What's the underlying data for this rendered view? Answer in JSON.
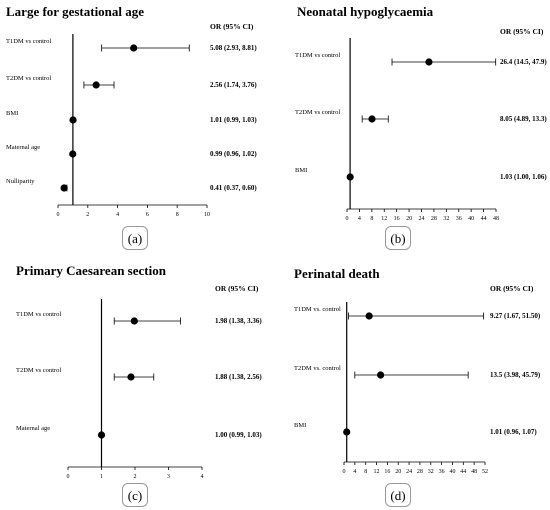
{
  "chart_data": [
    {
      "type": "forest",
      "title": "Large for gestational age",
      "or_header": "OR (95% CI)",
      "caption": "(a)",
      "xlim": [
        0,
        10
      ],
      "ticks": [
        0,
        2,
        4,
        6,
        8,
        10
      ],
      "reference_line": 1,
      "rows": [
        {
          "label": "T1DM vs control",
          "or": 5.08,
          "lo": 2.93,
          "hi": 8.81,
          "text": "5.08 (2.93, 8.81)"
        },
        {
          "label": "T2DM vs control",
          "or": 2.56,
          "lo": 1.74,
          "hi": 3.76,
          "text": "2.56 (1.74, 3.76)"
        },
        {
          "label": "BMI",
          "or": 1.01,
          "lo": 0.99,
          "hi": 1.03,
          "text": "1.01 (0.99, 1.03)"
        },
        {
          "label": "Maternal age",
          "or": 0.99,
          "lo": 0.96,
          "hi": 1.02,
          "text": "0.99 (0.96, 1.02)"
        },
        {
          "label": "Nulliparity",
          "or": 0.41,
          "lo": 0.37,
          "hi": 0.6,
          "text": "0.41 (0.37, 0.60)"
        }
      ]
    },
    {
      "type": "forest",
      "title": "Neonatal hypoglycaemia",
      "or_header": "OR (95% CI)",
      "caption": "(b)",
      "xlim": [
        0,
        48
      ],
      "ticks": [
        0,
        4,
        8,
        12,
        16,
        20,
        24,
        28,
        32,
        36,
        40,
        44,
        48
      ],
      "reference_line": 1,
      "rows": [
        {
          "label": "T1DM vs control",
          "or": 26.4,
          "lo": 14.5,
          "hi": 47.9,
          "text": "26.4 (14.5, 47.9)"
        },
        {
          "label": "T2DM vs control",
          "or": 8.05,
          "lo": 4.89,
          "hi": 13.3,
          "text": "8.05 (4.89, 13.3)"
        },
        {
          "label": "BMI",
          "or": 1.03,
          "lo": 1.0,
          "hi": 1.06,
          "text": "1.03 (1.00, 1.06)"
        }
      ]
    },
    {
      "type": "forest",
      "title": "Primary Caesarean section",
      "or_header": "OR (95% CI)",
      "caption": "(c)",
      "xlim": [
        0,
        4
      ],
      "ticks": [
        0,
        1,
        2,
        3,
        4
      ],
      "reference_line": 1,
      "rows": [
        {
          "label": "T1DM vs control",
          "or": 1.98,
          "lo": 1.38,
          "hi": 3.36,
          "text": "1.98 (1.38, 3.36)"
        },
        {
          "label": "T2DM vs control",
          "or": 1.88,
          "lo": 1.38,
          "hi": 2.56,
          "text": "1.88 (1.38, 2.56)"
        },
        {
          "label": "Maternal age",
          "or": 1.0,
          "lo": 0.99,
          "hi": 1.03,
          "text": "1.00 (0.99, 1.03)"
        }
      ]
    },
    {
      "type": "forest",
      "title": "Perinatal death",
      "or_header": "OR (95% CI)",
      "caption": "(d)",
      "xlim": [
        0,
        52
      ],
      "ticks": [
        0,
        4,
        8,
        12,
        16,
        20,
        24,
        28,
        32,
        36,
        40,
        44,
        48,
        52
      ],
      "reference_line": 1,
      "rows": [
        {
          "label": "T1DM vs. control",
          "or": 9.27,
          "lo": 1.67,
          "hi": 51.5,
          "text": "9.27 (1.67, 51.50)"
        },
        {
          "label": "T2DM vs. control",
          "or": 13.5,
          "lo": 3.98,
          "hi": 45.79,
          "text": "13.5 (3.98, 45.79)"
        },
        {
          "label": "BMI",
          "or": 1.01,
          "lo": 0.96,
          "hi": 1.07,
          "text": "1.01 (0.96, 1.07)"
        }
      ]
    }
  ]
}
